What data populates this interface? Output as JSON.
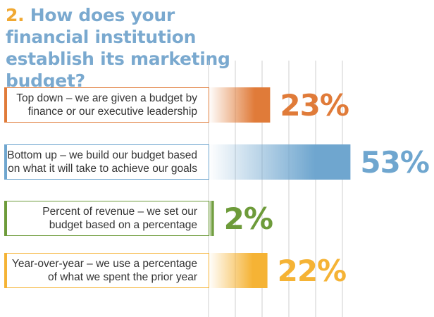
{
  "title": {
    "number": "2.",
    "text": "How does your financial institution establish its marketing budget?"
  },
  "chart_data": {
    "type": "bar",
    "orientation": "horizontal",
    "unit": "%",
    "xlim": [
      0,
      55
    ],
    "grid": true,
    "categories": [
      [
        "Top down – we are given a budget by",
        "finance or our executive leadership"
      ],
      [
        "Bottom up – we build our budget based",
        "on what it will take to achieve our goals"
      ],
      [
        "Percent of revenue – we set our",
        "budget based on a percentage"
      ],
      [
        "Year-over-year – we use a percentage",
        "of what we spent the prior year"
      ]
    ],
    "values": [
      23,
      53,
      2,
      22
    ],
    "value_labels": [
      "23%",
      "53%",
      "2%",
      "22%"
    ],
    "colors": [
      "#e07b39",
      "#6fa6cf",
      "#6d9b3a",
      "#f5b335"
    ]
  }
}
